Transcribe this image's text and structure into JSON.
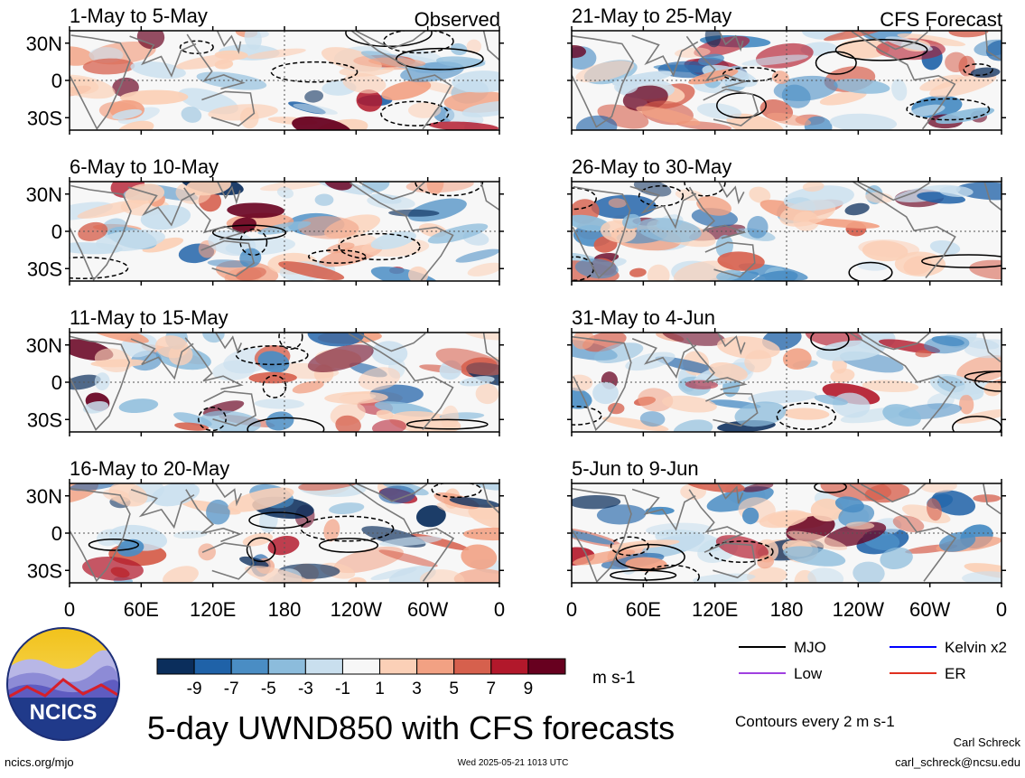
{
  "title": "5-day UWND850 with CFS forecasts",
  "footer": {
    "site": "ncics.org/mjo",
    "timestamp": "Wed 2025-05-21 1013 UTC",
    "author": "Carl Schreck",
    "email": "carl_schreck@ncsu.edu"
  },
  "logo": {
    "text": "NCICS"
  },
  "column_labels": {
    "left": "Observed",
    "right": "CFS Forecast"
  },
  "colorbar": {
    "unit": "m s-1",
    "tick_labels": [
      "-9",
      "-7",
      "-5",
      "-3",
      "-1",
      "1",
      "3",
      "5",
      "7",
      "9"
    ],
    "colors": [
      "#0b2e5c",
      "#1f62a8",
      "#4a8dc4",
      "#8cbcdc",
      "#c9dfee",
      "#f7f7f7",
      "#fbd0b7",
      "#f2a183",
      "#d6604d",
      "#b2182b",
      "#67001f"
    ]
  },
  "legend": {
    "items": [
      {
        "label": "MJO",
        "color": "#000000"
      },
      {
        "label": "Kelvin x2",
        "color": "#0000ff"
      },
      {
        "label": "Low",
        "color": "#a040e0"
      },
      {
        "label": "ER",
        "color": "#e03020"
      }
    ],
    "note": "Contours every 2 m s-1"
  },
  "chart_data": [
    {
      "type": "heatmap",
      "title": "1-May to 5-May",
      "source": "Observed",
      "x_ticks": [
        "0",
        "60E",
        "120E",
        "180",
        "120W",
        "60W",
        "0"
      ],
      "y_ticks": [
        "30N",
        "0",
        "30S"
      ]
    },
    {
      "type": "heatmap",
      "title": "6-May to 10-May",
      "source": "Observed",
      "x_ticks": [
        "0",
        "60E",
        "120E",
        "180",
        "120W",
        "60W",
        "0"
      ],
      "y_ticks": [
        "30N",
        "0",
        "30S"
      ]
    },
    {
      "type": "heatmap",
      "title": "11-May to 15-May",
      "source": "Observed",
      "x_ticks": [
        "0",
        "60E",
        "120E",
        "180",
        "120W",
        "60W",
        "0"
      ],
      "y_ticks": [
        "30N",
        "0",
        "30S"
      ]
    },
    {
      "type": "heatmap",
      "title": "16-May to 20-May",
      "source": "Observed",
      "x_ticks": [
        "0",
        "60E",
        "120E",
        "180",
        "120W",
        "60W",
        "0"
      ],
      "y_ticks": [
        "30N",
        "0",
        "30S"
      ]
    },
    {
      "type": "heatmap",
      "title": "21-May to 25-May",
      "source": "CFS Forecast",
      "x_ticks": [
        "0",
        "60E",
        "120E",
        "180",
        "120W",
        "60W",
        "0"
      ],
      "y_ticks": [
        "30N",
        "0",
        "30S"
      ]
    },
    {
      "type": "heatmap",
      "title": "26-May to 30-May",
      "source": "CFS Forecast",
      "x_ticks": [
        "0",
        "60E",
        "120E",
        "180",
        "120W",
        "60W",
        "0"
      ],
      "y_ticks": [
        "30N",
        "0",
        "30S"
      ]
    },
    {
      "type": "heatmap",
      "title": "31-May to 4-Jun",
      "source": "CFS Forecast",
      "x_ticks": [
        "0",
        "60E",
        "120E",
        "180",
        "120W",
        "60W",
        "0"
      ],
      "y_ticks": [
        "30N",
        "0",
        "30S"
      ]
    },
    {
      "type": "heatmap",
      "title": "5-Jun to 9-Jun",
      "source": "CFS Forecast",
      "x_ticks": [
        "0",
        "60E",
        "120E",
        "180",
        "120W",
        "60W",
        "0"
      ],
      "y_ticks": [
        "30N",
        "0",
        "30S"
      ]
    }
  ]
}
